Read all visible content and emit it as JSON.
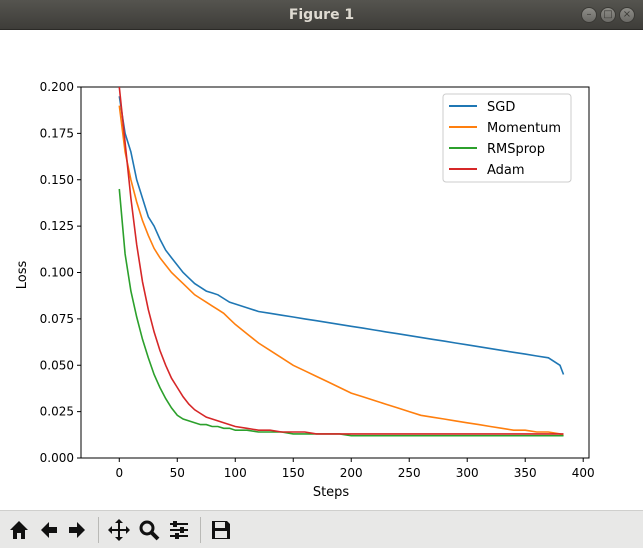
{
  "window": {
    "title": "Figure 1"
  },
  "toolbar": {
    "buttons": [
      {
        "name": "home",
        "icon": "home-icon"
      },
      {
        "name": "back",
        "icon": "arrow-left-icon"
      },
      {
        "name": "forward",
        "icon": "arrow-right-icon"
      },
      {
        "name": "pan",
        "icon": "move-icon"
      },
      {
        "name": "zoom",
        "icon": "zoom-icon"
      },
      {
        "name": "configure",
        "icon": "sliders-icon"
      },
      {
        "name": "save",
        "icon": "save-icon"
      }
    ]
  },
  "chart_data": {
    "type": "line",
    "title": "",
    "xlabel": "Steps",
    "ylabel": "Loss",
    "xlim": [
      -33,
      405
    ],
    "ylim": [
      0.0,
      0.2
    ],
    "xticks": [
      0,
      50,
      100,
      150,
      200,
      250,
      300,
      350,
      400
    ],
    "yticks": [
      "0.000",
      "0.025",
      "0.050",
      "0.075",
      "0.100",
      "0.125",
      "0.150",
      "0.175",
      "0.200"
    ],
    "legend_position": "top-right",
    "grid": false,
    "series": [
      {
        "name": "SGD",
        "color": "#1f77b4",
        "x": [
          0,
          5,
          10,
          15,
          20,
          25,
          30,
          35,
          40,
          45,
          50,
          55,
          60,
          65,
          70,
          75,
          80,
          85,
          90,
          95,
          100,
          110,
          120,
          130,
          140,
          150,
          160,
          170,
          180,
          190,
          200,
          210,
          220,
          230,
          240,
          250,
          260,
          270,
          280,
          290,
          300,
          310,
          320,
          330,
          340,
          350,
          360,
          370,
          380,
          383
        ],
        "y": [
          0.195,
          0.175,
          0.165,
          0.15,
          0.14,
          0.13,
          0.125,
          0.118,
          0.112,
          0.108,
          0.104,
          0.1,
          0.097,
          0.094,
          0.092,
          0.09,
          0.089,
          0.088,
          0.086,
          0.084,
          0.083,
          0.081,
          0.079,
          0.078,
          0.077,
          0.076,
          0.075,
          0.074,
          0.073,
          0.072,
          0.071,
          0.07,
          0.069,
          0.068,
          0.067,
          0.066,
          0.065,
          0.064,
          0.063,
          0.062,
          0.061,
          0.06,
          0.059,
          0.058,
          0.057,
          0.056,
          0.055,
          0.054,
          0.05,
          0.045
        ]
      },
      {
        "name": "Momentum",
        "color": "#ff7f0e",
        "x": [
          0,
          5,
          10,
          15,
          20,
          25,
          30,
          35,
          40,
          45,
          50,
          55,
          60,
          65,
          70,
          75,
          80,
          85,
          90,
          95,
          100,
          110,
          120,
          130,
          140,
          150,
          160,
          170,
          180,
          190,
          200,
          210,
          220,
          230,
          240,
          250,
          260,
          270,
          280,
          290,
          300,
          310,
          320,
          330,
          340,
          350,
          360,
          370,
          380,
          383
        ],
        "y": [
          0.19,
          0.165,
          0.15,
          0.138,
          0.128,
          0.12,
          0.113,
          0.108,
          0.104,
          0.1,
          0.097,
          0.094,
          0.091,
          0.088,
          0.086,
          0.084,
          0.082,
          0.08,
          0.078,
          0.075,
          0.072,
          0.067,
          0.062,
          0.058,
          0.054,
          0.05,
          0.047,
          0.044,
          0.041,
          0.038,
          0.035,
          0.033,
          0.031,
          0.029,
          0.027,
          0.025,
          0.023,
          0.022,
          0.021,
          0.02,
          0.019,
          0.018,
          0.017,
          0.016,
          0.015,
          0.015,
          0.014,
          0.014,
          0.013,
          0.012
        ]
      },
      {
        "name": "RMSprop",
        "color": "#2ca02c",
        "x": [
          0,
          5,
          10,
          15,
          20,
          25,
          30,
          35,
          40,
          45,
          50,
          55,
          60,
          65,
          70,
          75,
          80,
          85,
          90,
          95,
          100,
          110,
          120,
          130,
          140,
          150,
          160,
          170,
          180,
          190,
          200,
          210,
          220,
          230,
          240,
          250,
          260,
          270,
          280,
          290,
          300,
          310,
          320,
          330,
          340,
          350,
          360,
          370,
          380,
          383
        ],
        "y": [
          0.145,
          0.11,
          0.09,
          0.076,
          0.064,
          0.054,
          0.045,
          0.038,
          0.032,
          0.027,
          0.023,
          0.021,
          0.02,
          0.019,
          0.018,
          0.018,
          0.017,
          0.017,
          0.016,
          0.016,
          0.015,
          0.015,
          0.014,
          0.014,
          0.014,
          0.013,
          0.013,
          0.013,
          0.013,
          0.013,
          0.012,
          0.012,
          0.012,
          0.012,
          0.012,
          0.012,
          0.012,
          0.012,
          0.012,
          0.012,
          0.012,
          0.012,
          0.012,
          0.012,
          0.012,
          0.012,
          0.012,
          0.012,
          0.012,
          0.012
        ]
      },
      {
        "name": "Adam",
        "color": "#d62728",
        "x": [
          0,
          5,
          10,
          15,
          20,
          25,
          30,
          35,
          40,
          45,
          50,
          55,
          60,
          65,
          70,
          75,
          80,
          85,
          90,
          95,
          100,
          110,
          120,
          130,
          140,
          150,
          160,
          170,
          180,
          190,
          200,
          210,
          220,
          230,
          240,
          250,
          260,
          270,
          280,
          290,
          300,
          310,
          320,
          330,
          340,
          350,
          360,
          370,
          380,
          383
        ],
        "y": [
          0.2,
          0.17,
          0.14,
          0.115,
          0.095,
          0.08,
          0.068,
          0.058,
          0.05,
          0.043,
          0.038,
          0.033,
          0.029,
          0.026,
          0.024,
          0.022,
          0.021,
          0.02,
          0.019,
          0.018,
          0.017,
          0.016,
          0.015,
          0.015,
          0.014,
          0.014,
          0.014,
          0.013,
          0.013,
          0.013,
          0.013,
          0.013,
          0.013,
          0.013,
          0.013,
          0.013,
          0.013,
          0.013,
          0.013,
          0.013,
          0.013,
          0.013,
          0.013,
          0.013,
          0.013,
          0.013,
          0.013,
          0.013,
          0.013,
          0.013
        ]
      }
    ]
  }
}
